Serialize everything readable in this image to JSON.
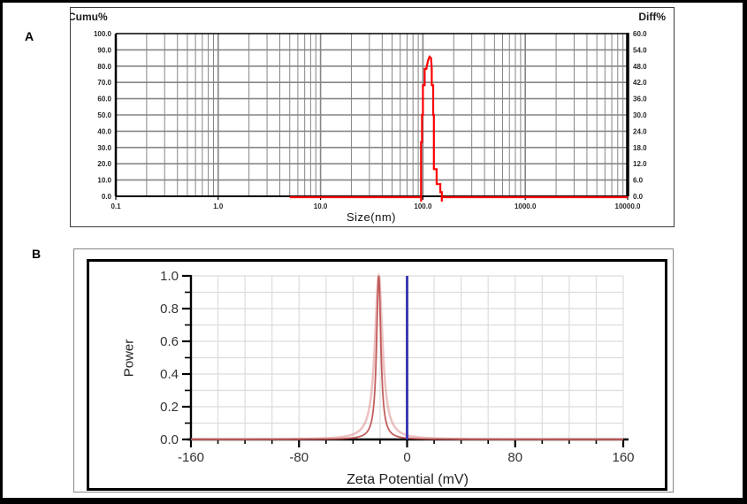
{
  "figure_labels": {
    "panel_a": "A",
    "panel_b": "B"
  },
  "colors": {
    "curve_a": "#fe0000",
    "curve_b_core": "#c05555",
    "curve_b_halo": "#dd8f8f",
    "marker_blue": "#3c3cb4",
    "grid_a": "#868686",
    "grid_b": "#dcdcdc",
    "axis_black": "#000000"
  },
  "chart_data": [
    {
      "id": "size-distribution",
      "type": "line",
      "x_scale": "log",
      "xlabel": "Size(nm)",
      "xlim": [
        0.1,
        10000
      ],
      "x_ticks": [
        0.1,
        1.0,
        10.0,
        100.0,
        1000.0,
        10000.0
      ],
      "x_tick_labels": [
        "0.1",
        "1.0",
        "10.0",
        "100.0",
        "1000.0",
        "10000.0"
      ],
      "left_axis": {
        "label": "Cumu%",
        "min": 0,
        "max": 100,
        "tick_step": 10,
        "tick_labels": [
          "100.0",
          "90.0",
          "80.0",
          "70.0",
          "60.0",
          "50.0",
          "40.0",
          "30.0",
          "20.0",
          "10.0",
          "0.0"
        ]
      },
      "right_axis": {
        "label": "Diff%",
        "min": 0,
        "max": 60,
        "tick_step": 6,
        "tick_labels": [
          "60.0",
          "54.0",
          "48.0",
          "42.0",
          "36.0",
          "30.0",
          "24.0",
          "18.0",
          "12.0",
          "6.0",
          "0.0"
        ]
      },
      "grid": true,
      "series": [
        {
          "name": "diff-distribution",
          "axis": "right",
          "baseline_start_nm": 5,
          "points_nm_diffpct": [
            [
              5,
              0
            ],
            [
              96,
              0
            ],
            [
              96,
              20
            ],
            [
              98,
              20
            ],
            [
              98,
              30
            ],
            [
              100,
              30
            ],
            [
              100,
              41
            ],
            [
              104,
              41
            ],
            [
              104,
              47
            ],
            [
              108,
              47
            ],
            [
              112,
              50
            ],
            [
              116,
              51.5
            ],
            [
              120,
              51
            ],
            [
              122,
              47
            ],
            [
              122,
              41
            ],
            [
              126,
              41
            ],
            [
              126,
              30
            ],
            [
              128,
              30
            ],
            [
              128,
              10
            ],
            [
              136,
              10
            ],
            [
              136,
              4.5
            ],
            [
              148,
              4.5
            ],
            [
              148,
              1.5
            ],
            [
              153,
              1.5
            ],
            [
              153,
              0
            ],
            [
              10000,
              0
            ]
          ],
          "undershoot_nm": [
            96,
            153
          ]
        }
      ],
      "peak_summary": {
        "peak_size_nm": 116,
        "peak_diff_pct": 51.5,
        "peak_range_nm": [
          96,
          153
        ]
      }
    },
    {
      "id": "zeta-potential",
      "type": "line",
      "xlabel": "Zeta Potential (mV)",
      "ylabel": "Power",
      "xlim": [
        -160,
        160
      ],
      "x_major_ticks": [
        -160,
        -80,
        0,
        80,
        160
      ],
      "x_major_tick_labels": [
        "-160",
        "-80",
        "0",
        "80",
        "160"
      ],
      "x_minor_step": 20,
      "ylim": [
        0,
        1
      ],
      "y_major_ticks": [
        1.0,
        0.8,
        0.6,
        0.4,
        0.2,
        0.0
      ],
      "y_tick_labels": [
        "1.0",
        "0.8",
        "0.6",
        "0.4",
        "0.2",
        "0.0"
      ],
      "y_minor_step": 0.1,
      "grid": true,
      "series": [
        {
          "name": "zeta-peak",
          "shape": "lorentzian",
          "center_mv": -21,
          "hwhm_mv": 1.9,
          "amplitude": 1.0
        }
      ],
      "marker_line": {
        "value_mv": 0
      }
    }
  ]
}
